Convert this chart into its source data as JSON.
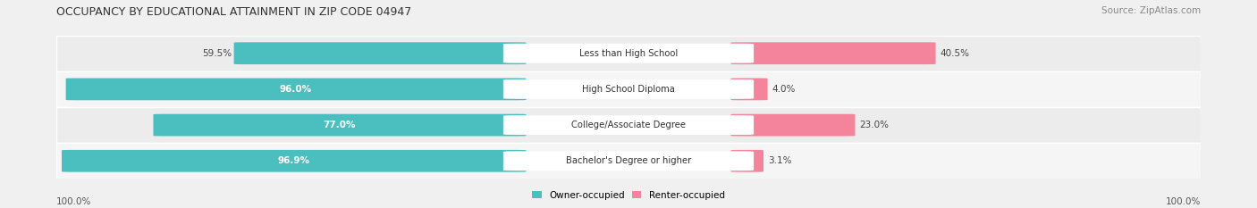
{
  "title": "OCCUPANCY BY EDUCATIONAL ATTAINMENT IN ZIP CODE 04947",
  "source": "Source: ZipAtlas.com",
  "categories": [
    "Less than High School",
    "High School Diploma",
    "College/Associate Degree",
    "Bachelor's Degree or higher"
  ],
  "owner_pct": [
    59.5,
    96.0,
    77.0,
    96.9
  ],
  "renter_pct": [
    40.5,
    4.0,
    23.0,
    3.1
  ],
  "owner_color": "#4BBFBF",
  "renter_color": "#F4839C",
  "bg_color": "#f0f0f0",
  "row_colors": [
    "#ececec",
    "#f5f5f5",
    "#ececec",
    "#f5f5f5"
  ],
  "x_left_label": "100.0%",
  "x_right_label": "100.0%"
}
